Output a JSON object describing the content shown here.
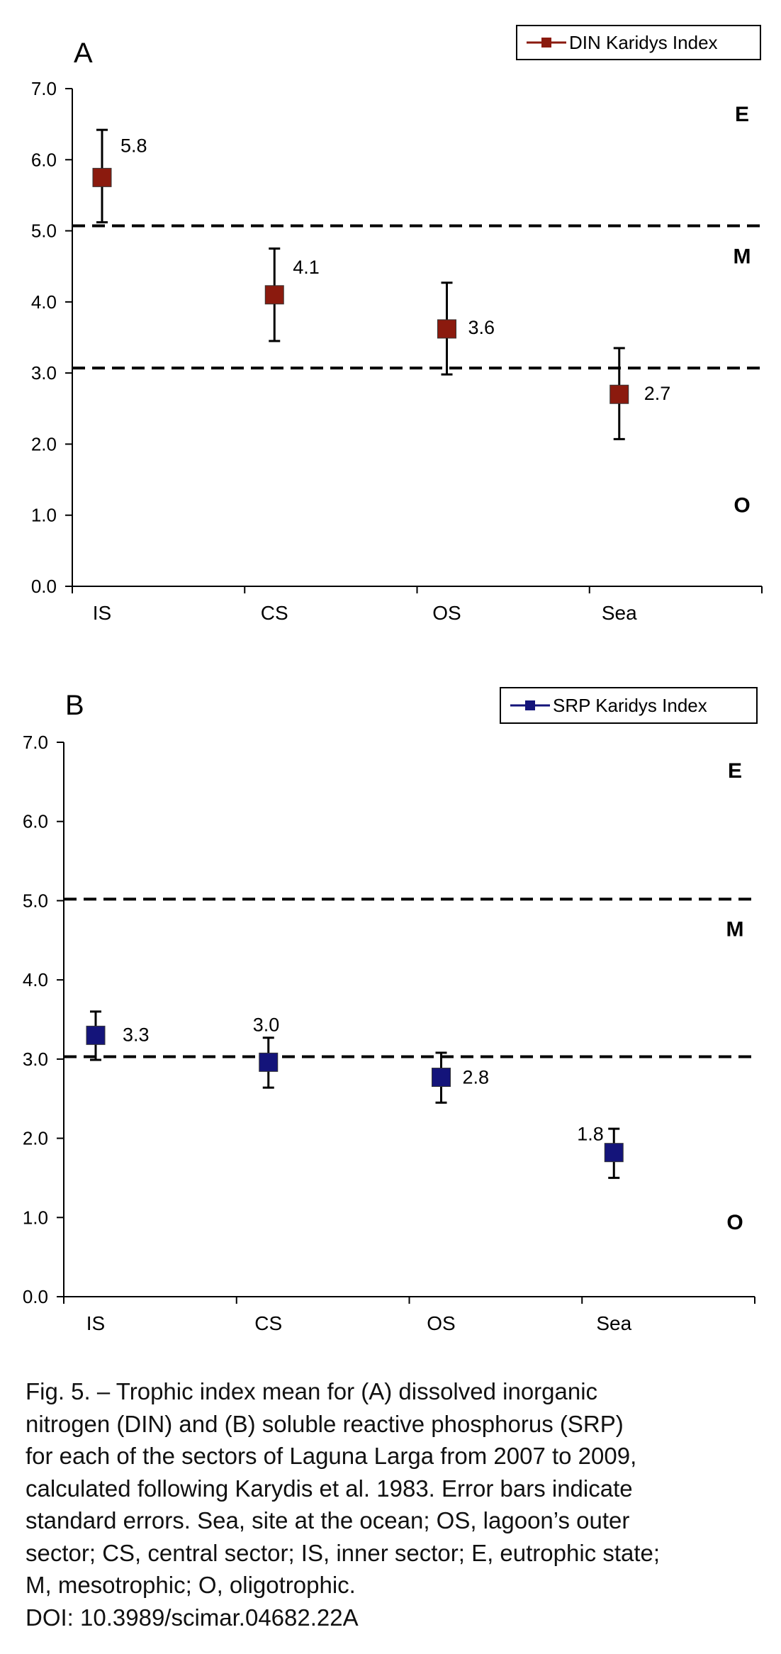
{
  "chart_data": [
    {
      "type": "scatter",
      "panel_label": "A",
      "categories": [
        "IS",
        "CS",
        "OS",
        "Sea"
      ],
      "series": [
        {
          "name": "DIN Karidys Index",
          "color": "#8b1a0e",
          "values": [
            5.75,
            4.1,
            3.62,
            2.7
          ],
          "error_low": [
            5.12,
            3.45,
            2.98,
            2.07
          ],
          "error_high": [
            6.42,
            4.75,
            4.27,
            3.35
          ],
          "data_labels": [
            "5.8",
            "4.1",
            "3.6",
            "2.7"
          ]
        }
      ],
      "ylim": [
        0,
        7
      ],
      "yticks": [
        "0.0",
        "1.0",
        "2.0",
        "3.0",
        "4.0",
        "5.0",
        "6.0",
        "7.0"
      ],
      "thresholds": [
        5.07,
        3.07
      ],
      "zone_labels": [
        "E",
        "M",
        "O"
      ],
      "legend_placement": "top-right",
      "grid": false
    },
    {
      "type": "scatter",
      "panel_label": "B",
      "categories": [
        "IS",
        "CS",
        "OS",
        "Sea"
      ],
      "series": [
        {
          "name": "SRP Karidys Index",
          "color": "#14147a",
          "values": [
            3.3,
            2.96,
            2.77,
            1.82
          ],
          "error_low": [
            2.99,
            2.64,
            2.45,
            1.5
          ],
          "error_high": [
            3.6,
            3.27,
            3.08,
            2.12
          ],
          "data_labels": [
            "3.3",
            "3.0",
            "2.8",
            "1.8"
          ]
        }
      ],
      "ylim": [
        0,
        7
      ],
      "yticks": [
        "0.0",
        "1.0",
        "2.0",
        "3.0",
        "4.0",
        "5.0",
        "6.0",
        "7.0"
      ],
      "thresholds": [
        5.02,
        3.03
      ],
      "zone_labels": [
        "E",
        "M",
        "O"
      ],
      "legend_placement": "top-right",
      "grid": false
    }
  ],
  "caption": {
    "lines": [
      "Fig. 5. – Trophic index mean for (A) dissolved inorganic",
      "nitrogen (DIN) and (B) soluble reactive phosphorus (SRP)",
      "for each of the sectors of Laguna Larga from 2007 to 2009,",
      "calculated following Karydis et al. 1983. Error bars indicate",
      "standard errors. Sea, site at the ocean; OS, lagoon’s outer",
      "sector; CS, central sector; IS, inner sector; E, eutrophic state;",
      "M, mesotrophic; O, oligotrophic.",
      "DOI: 10.3989/scimar.04682.22A"
    ]
  }
}
